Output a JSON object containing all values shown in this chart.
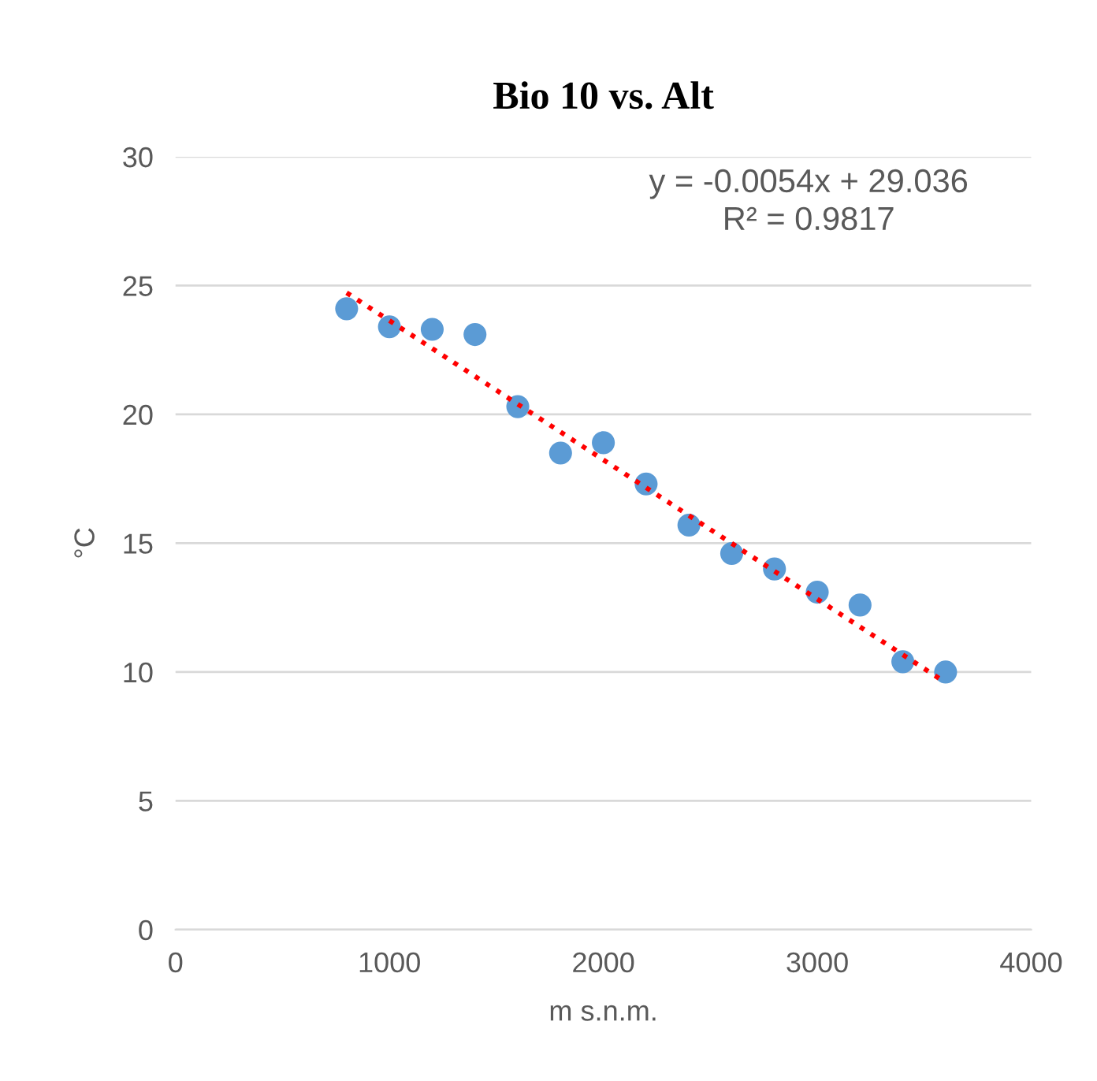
{
  "chart_data": {
    "type": "scatter",
    "title": "Bio 10 vs. Alt",
    "xlabel": "m s.n.m.",
    "ylabel": "°C",
    "x": [
      800,
      1000,
      1200,
      1400,
      1600,
      1800,
      2000,
      2200,
      2400,
      2600,
      2800,
      3000,
      3200,
      3400,
      3600
    ],
    "series": [
      {
        "color": "#5b9bd5",
        "marker": "circle",
        "values": [
          24.1,
          23.4,
          23.3,
          23.1,
          20.3,
          18.5,
          18.9,
          17.3,
          15.7,
          14.6,
          14.0,
          13.1,
          12.6,
          10.4,
          10.0
        ]
      },
      {
        "type": "line",
        "color": "#ff0000",
        "line_style": "dotted",
        "marker": "none",
        "x": [
          800,
          3600
        ],
        "values": [
          24.72,
          9.59
        ]
      }
    ],
    "annotations": [
      "y = -0.0054x + 29.036\nR² = 0.9817"
    ],
    "xlim": [
      0,
      4000
    ],
    "xticks": [
      0,
      1000,
      2000,
      3000,
      4000
    ],
    "ylim": [
      0,
      30
    ],
    "yticks": [
      0,
      5,
      10,
      15,
      20,
      25,
      30
    ],
    "grid": "y",
    "legend": false
  }
}
